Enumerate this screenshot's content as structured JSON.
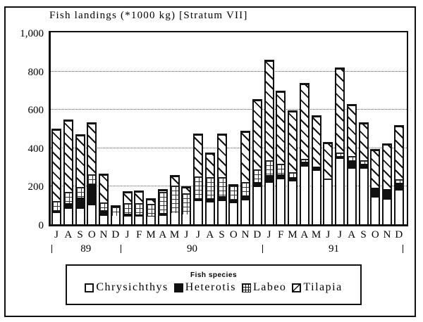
{
  "chart_data": {
    "type": "bar",
    "stacked": true,
    "title": "Fish landings (*1000 kg) [Stratum VII]",
    "xlabel": "",
    "ylabel": "",
    "ylim": [
      0,
      1000
    ],
    "yticks": [
      "0",
      "200",
      "400",
      "600",
      "800",
      "1,000"
    ],
    "grid": "dotted horizontal at 200, 400, 600, 800",
    "categories": [
      "J",
      "A",
      "S",
      "O",
      "N",
      "D",
      "J",
      "F",
      "M",
      "A",
      "M",
      "J",
      "J",
      "A",
      "S",
      "O",
      "N",
      "D",
      "J",
      "F",
      "M",
      "A",
      "M",
      "J",
      "J",
      "A",
      "S",
      "O",
      "N",
      "D"
    ],
    "years": [
      {
        "label": "89",
        "start": 0,
        "end": 6
      },
      {
        "label": "90",
        "start": 6,
        "end": 18
      },
      {
        "label": "91",
        "start": 18,
        "end": 30
      }
    ],
    "legend_title": "Fish species",
    "legend_position": "bottom",
    "series": [
      {
        "name": "Chrysichthys",
        "pattern": "white",
        "values": [
          60,
          80,
          80,
          100,
          45,
          45,
          40,
          40,
          40,
          45,
          60,
          50,
          120,
          115,
          120,
          110,
          125,
          195,
          215,
          235,
          225,
          300,
          280,
          230,
          340,
          290,
          290,
          140,
          130,
          175
        ]
      },
      {
        "name": "Heterotis",
        "pattern": "solid-black",
        "values": [
          15,
          30,
          60,
          110,
          30,
          0,
          15,
          10,
          5,
          15,
          0,
          0,
          15,
          20,
          25,
          20,
          25,
          25,
          40,
          25,
          20,
          25,
          15,
          0,
          15,
          45,
          25,
          50,
          55,
          40
        ]
      },
      {
        "name": "Labeo",
        "pattern": "grid",
        "values": [
          45,
          60,
          55,
          50,
          40,
          45,
          55,
          60,
          60,
          110,
          140,
          110,
          115,
          110,
          100,
          70,
          70,
          65,
          80,
          55,
          25,
          15,
          5,
          10,
          20,
          20,
          20,
          0,
          0,
          20
        ]
      },
      {
        "name": "Tilapia",
        "pattern": "diagonal-hatch",
        "values": [
          370,
          370,
          265,
          265,
          140,
          0,
          55,
          60,
          25,
          5,
          50,
          30,
          215,
          120,
          220,
          0,
          260,
          360,
          515,
          375,
          315,
          390,
          260,
          180,
          435,
          265,
          190,
          195,
          230,
          275
        ]
      }
    ]
  }
}
